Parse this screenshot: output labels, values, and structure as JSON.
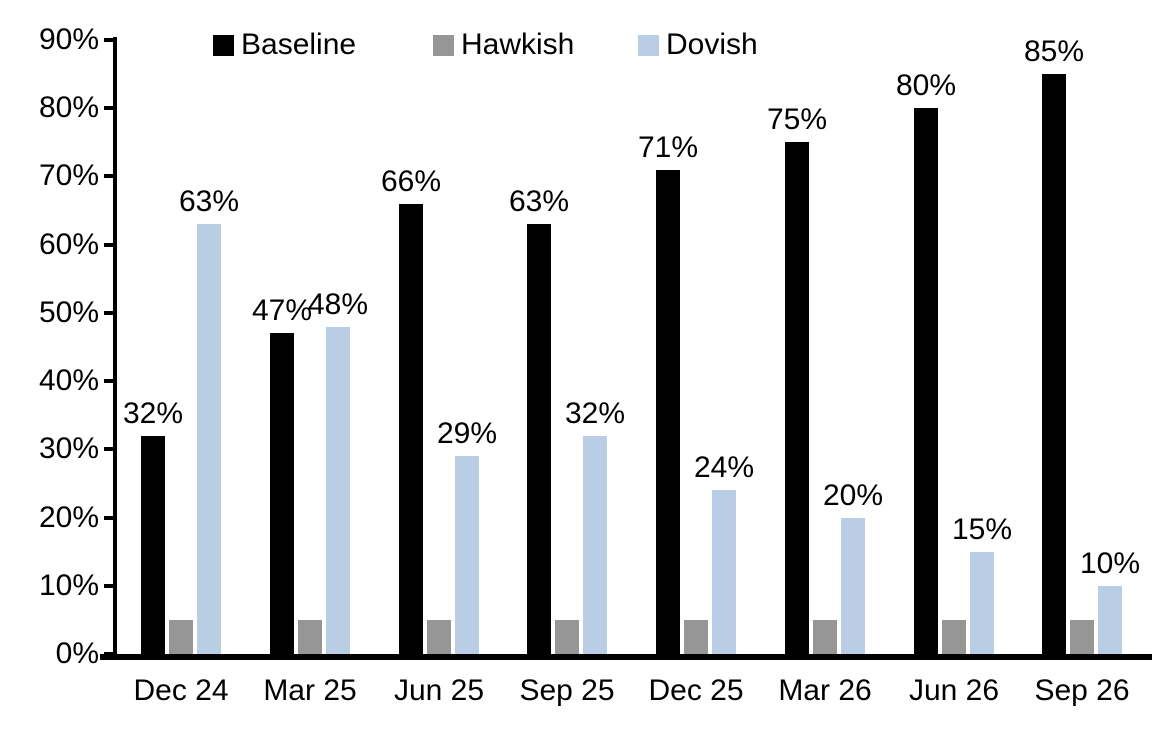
{
  "chart_data": {
    "type": "bar",
    "title": "",
    "categories": [
      "Dec 24",
      "Mar 25",
      "Jun 25",
      "Sep 25",
      "Dec 25",
      "Mar 26",
      "Jun 26",
      "Sep 26"
    ],
    "series": [
      {
        "name": "Baseline",
        "color": "#000000",
        "values": [
          32,
          47,
          66,
          63,
          71,
          75,
          80,
          85
        ],
        "data_labels": [
          "32%",
          "47%",
          "66%",
          "63%",
          "71%",
          "75%",
          "80%",
          "85%"
        ]
      },
      {
        "name": "Hawkish",
        "color": "#969696",
        "values": [
          5,
          5,
          5,
          5,
          5,
          5,
          5,
          5
        ],
        "data_labels": null
      },
      {
        "name": "Dovish",
        "color": "#B9CDE5",
        "values": [
          63,
          48,
          29,
          32,
          24,
          20,
          15,
          10
        ],
        "data_labels": [
          "63%",
          "48%",
          "29%",
          "32%",
          "24%",
          "20%",
          "15%",
          "10%"
        ]
      }
    ],
    "ylim": [
      0,
      90
    ],
    "yticks": [
      "0%",
      "10%",
      "20%",
      "30%",
      "40%",
      "50%",
      "60%",
      "70%",
      "80%",
      "90%"
    ],
    "ytick_values": [
      0,
      10,
      20,
      30,
      40,
      50,
      60,
      70,
      80,
      90
    ],
    "grid": false,
    "legend_position": "top",
    "xlabel": "",
    "ylabel": ""
  },
  "colors": {
    "background": "#FFFFFF",
    "axis": "#000000",
    "text": "#000000"
  }
}
